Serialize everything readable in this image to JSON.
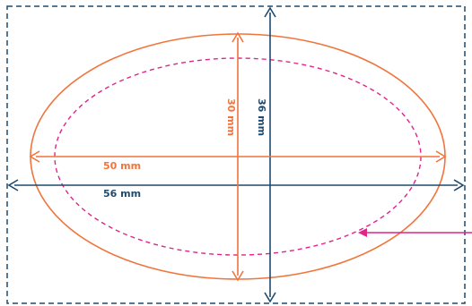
{
  "colors": {
    "navy": "#1d4a6e",
    "orange": "#f0743c",
    "magenta": "#e0248a"
  },
  "dimensions": {
    "outer_width": "56 mm",
    "outer_height": "36 mm",
    "inner_width": "50 mm",
    "inner_height": "30 mm"
  }
}
